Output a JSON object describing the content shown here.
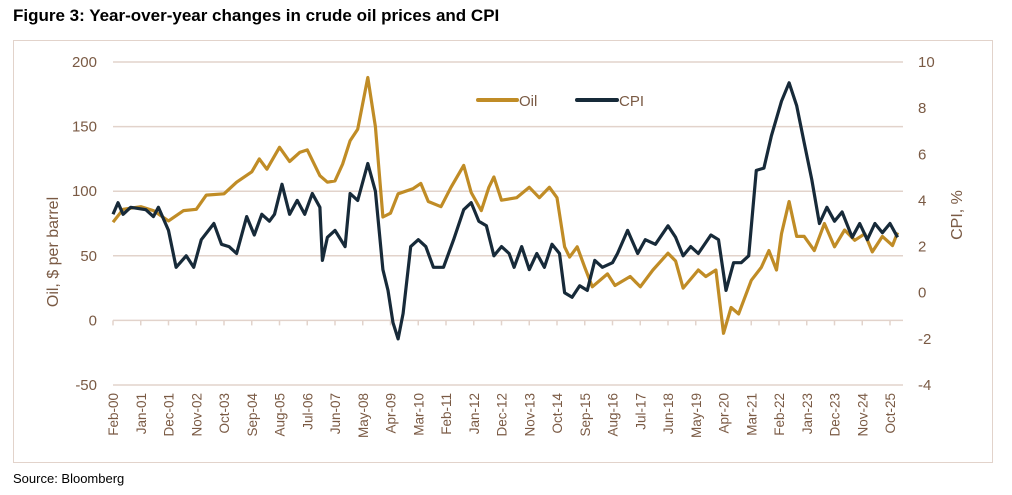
{
  "title": "Figure 3: Year-over-year changes in crude oil prices and CPI",
  "source": "Source: Bloomberg",
  "colors": {
    "oil": "#c08c26",
    "cpi": "#172a39",
    "axis_text": "#7a5a44",
    "grid": "#e2d3cb"
  },
  "chart_data": {
    "type": "line",
    "title": "Figure 3: Year-over-year changes in crude oil prices and CPI",
    "ylabel": "Oil, $ per barrel",
    "y2label": "CPI, %",
    "ylim": [
      -50,
      200
    ],
    "y2lim": [
      -4,
      10
    ],
    "yticks": [
      "-50",
      "0",
      "50",
      "100",
      "150",
      "200"
    ],
    "y2ticks": [
      "-4",
      "-2",
      "0",
      "2",
      "4",
      "6",
      "8",
      "10"
    ],
    "xticks": [
      "Feb-00",
      "Jan-01",
      "Dec-01",
      "Nov-02",
      "Oct-03",
      "Sep-04",
      "Aug-05",
      "Jul-06",
      "Jun-07",
      "May-08",
      "Apr-09",
      "Mar-10",
      "Feb-11",
      "Jan-12",
      "Dec-12",
      "Nov-13",
      "Oct-14",
      "Sep-15",
      "Aug-16",
      "Jul-17",
      "Jun-18",
      "May-19",
      "Apr-20",
      "Mar-21",
      "Feb-22",
      "Jan-23",
      "Dec-23",
      "Nov-24",
      "Oct-25"
    ],
    "grid": true,
    "legend": "top-center",
    "series": [
      {
        "name": "Oil",
        "axis": "left",
        "points": [
          [
            "2000-02",
            76
          ],
          [
            "2000-06",
            86
          ],
          [
            "2001-01",
            88
          ],
          [
            "2001-06",
            85
          ],
          [
            "2001-12",
            77
          ],
          [
            "2002-06",
            85
          ],
          [
            "2002-11",
            86
          ],
          [
            "2003-03",
            97
          ],
          [
            "2003-10",
            98
          ],
          [
            "2004-03",
            107
          ],
          [
            "2004-09",
            115
          ],
          [
            "2004-12",
            125
          ],
          [
            "2005-03",
            117
          ],
          [
            "2005-08",
            134
          ],
          [
            "2005-12",
            123
          ],
          [
            "2006-04",
            130
          ],
          [
            "2006-07",
            132
          ],
          [
            "2006-12",
            112
          ],
          [
            "2007-03",
            107
          ],
          [
            "2007-06",
            108
          ],
          [
            "2007-09",
            121
          ],
          [
            "2007-12",
            139
          ],
          [
            "2008-03",
            148
          ],
          [
            "2008-07",
            188
          ],
          [
            "2008-10",
            150
          ],
          [
            "2009-01",
            80
          ],
          [
            "2009-04",
            83
          ],
          [
            "2009-07",
            98
          ],
          [
            "2010-01",
            102
          ],
          [
            "2010-04",
            106
          ],
          [
            "2010-07",
            92
          ],
          [
            "2010-12",
            88
          ],
          [
            "2011-04",
            103
          ],
          [
            "2011-09",
            120
          ],
          [
            "2011-12",
            99
          ],
          [
            "2012-04",
            85
          ],
          [
            "2012-07",
            103
          ],
          [
            "2012-09",
            111
          ],
          [
            "2012-12",
            93
          ],
          [
            "2013-06",
            95
          ],
          [
            "2013-11",
            103
          ],
          [
            "2014-03",
            95
          ],
          [
            "2014-07",
            103
          ],
          [
            "2014-10",
            95
          ],
          [
            "2015-01",
            57
          ],
          [
            "2015-03",
            49
          ],
          [
            "2015-06",
            57
          ],
          [
            "2015-09",
            41
          ],
          [
            "2015-12",
            26
          ],
          [
            "2016-06",
            36
          ],
          [
            "2016-09",
            27
          ],
          [
            "2017-03",
            34
          ],
          [
            "2017-07",
            26
          ],
          [
            "2017-12",
            39
          ],
          [
            "2018-06",
            52
          ],
          [
            "2018-09",
            46
          ],
          [
            "2018-12",
            25
          ],
          [
            "2019-06",
            39
          ],
          [
            "2019-09",
            34
          ],
          [
            "2020-01",
            39
          ],
          [
            "2020-04",
            -10
          ],
          [
            "2020-07",
            10
          ],
          [
            "2020-10",
            5
          ],
          [
            "2021-03",
            31
          ],
          [
            "2021-07",
            41
          ],
          [
            "2021-10",
            54
          ],
          [
            "2022-01",
            39
          ],
          [
            "2022-03",
            67
          ],
          [
            "2022-06",
            92
          ],
          [
            "2022-09",
            65
          ],
          [
            "2022-12",
            65
          ],
          [
            "2023-04",
            54
          ],
          [
            "2023-08",
            75
          ],
          [
            "2023-12",
            57
          ],
          [
            "2024-04",
            70
          ],
          [
            "2024-08",
            62
          ],
          [
            "2024-12",
            67
          ],
          [
            "2025-03",
            53
          ],
          [
            "2025-07",
            65
          ],
          [
            "2025-11",
            58
          ],
          [
            "2026-01",
            68
          ]
        ]
      },
      {
        "name": "CPI",
        "axis": "right",
        "points": [
          [
            "2000-02",
            3.4
          ],
          [
            "2000-04",
            3.9
          ],
          [
            "2000-06",
            3.4
          ],
          [
            "2000-09",
            3.7
          ],
          [
            "2001-03",
            3.6
          ],
          [
            "2001-06",
            3.3
          ],
          [
            "2001-08",
            3.7
          ],
          [
            "2001-12",
            2.7
          ],
          [
            "2002-03",
            1.1
          ],
          [
            "2002-07",
            1.6
          ],
          [
            "2002-10",
            1.1
          ],
          [
            "2003-01",
            2.3
          ],
          [
            "2003-06",
            3.0
          ],
          [
            "2003-09",
            2.1
          ],
          [
            "2003-12",
            2.0
          ],
          [
            "2004-03",
            1.7
          ],
          [
            "2004-07",
            3.3
          ],
          [
            "2004-10",
            2.5
          ],
          [
            "2005-01",
            3.4
          ],
          [
            "2005-04",
            3.1
          ],
          [
            "2005-06",
            3.4
          ],
          [
            "2005-09",
            4.7
          ],
          [
            "2005-12",
            3.4
          ],
          [
            "2006-03",
            4.0
          ],
          [
            "2006-06",
            3.4
          ],
          [
            "2006-09",
            4.3
          ],
          [
            "2006-12",
            3.7
          ],
          [
            "2007-01",
            1.4
          ],
          [
            "2007-03",
            2.4
          ],
          [
            "2007-06",
            2.7
          ],
          [
            "2007-10",
            2.0
          ],
          [
            "2007-12",
            4.3
          ],
          [
            "2008-03",
            4.0
          ],
          [
            "2008-07",
            5.6
          ],
          [
            "2008-10",
            4.4
          ],
          [
            "2009-01",
            1.0
          ],
          [
            "2009-03",
            0.1
          ],
          [
            "2009-05",
            -1.3
          ],
          [
            "2009-07",
            -2.0
          ],
          [
            "2009-09",
            -0.9
          ],
          [
            "2009-12",
            2.0
          ],
          [
            "2010-03",
            2.3
          ],
          [
            "2010-06",
            2.0
          ],
          [
            "2010-09",
            1.1
          ],
          [
            "2011-01",
            1.1
          ],
          [
            "2011-05",
            2.3
          ],
          [
            "2011-09",
            3.6
          ],
          [
            "2011-12",
            3.9
          ],
          [
            "2012-03",
            3.1
          ],
          [
            "2012-06",
            2.9
          ],
          [
            "2012-09",
            1.6
          ],
          [
            "2012-12",
            2.0
          ],
          [
            "2013-03",
            1.7
          ],
          [
            "2013-05",
            1.1
          ],
          [
            "2013-08",
            2.0
          ],
          [
            "2013-11",
            1.0
          ],
          [
            "2014-02",
            1.7
          ],
          [
            "2014-05",
            1.1
          ],
          [
            "2014-08",
            2.1
          ],
          [
            "2014-11",
            1.7
          ],
          [
            "2015-01",
            0.0
          ],
          [
            "2015-04",
            -0.2
          ],
          [
            "2015-07",
            0.3
          ],
          [
            "2015-10",
            0.1
          ],
          [
            "2016-01",
            1.4
          ],
          [
            "2016-04",
            1.1
          ],
          [
            "2016-08",
            1.3
          ],
          [
            "2016-10",
            1.7
          ],
          [
            "2017-02",
            2.7
          ],
          [
            "2017-06",
            1.7
          ],
          [
            "2017-09",
            2.3
          ],
          [
            "2018-01",
            2.1
          ],
          [
            "2018-06",
            2.9
          ],
          [
            "2018-09",
            2.4
          ],
          [
            "2018-12",
            1.6
          ],
          [
            "2019-03",
            2.0
          ],
          [
            "2019-06",
            1.7
          ],
          [
            "2019-11",
            2.5
          ],
          [
            "2020-02",
            2.3
          ],
          [
            "2020-05",
            0.1
          ],
          [
            "2020-08",
            1.3
          ],
          [
            "2020-11",
            1.3
          ],
          [
            "2021-02",
            1.6
          ],
          [
            "2021-05",
            5.3
          ],
          [
            "2021-08",
            5.4
          ],
          [
            "2021-11",
            6.8
          ],
          [
            "2022-03",
            8.3
          ],
          [
            "2022-06",
            9.1
          ],
          [
            "2022-09",
            8.1
          ],
          [
            "2022-12",
            6.5
          ],
          [
            "2023-03",
            4.9
          ],
          [
            "2023-06",
            3.0
          ],
          [
            "2023-09",
            3.7
          ],
          [
            "2023-12",
            3.1
          ],
          [
            "2024-03",
            3.5
          ],
          [
            "2024-07",
            2.4
          ],
          [
            "2024-10",
            3.0
          ],
          [
            "2025-01",
            2.3
          ],
          [
            "2025-04",
            3.0
          ],
          [
            "2025-07",
            2.6
          ],
          [
            "2025-10",
            3.0
          ],
          [
            "2026-01",
            2.4
          ]
        ]
      }
    ]
  }
}
